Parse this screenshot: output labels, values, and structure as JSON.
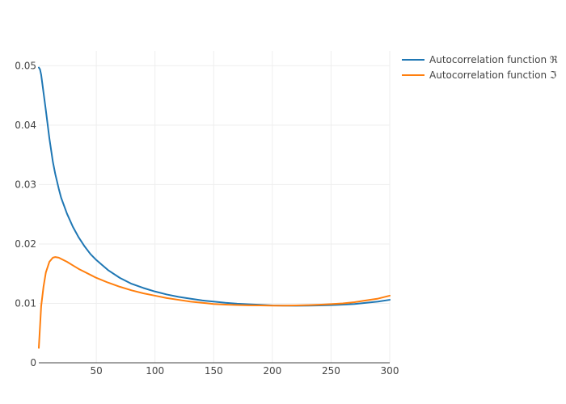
{
  "chart_data": {
    "type": "line",
    "title": "",
    "xlabel": "",
    "ylabel": "",
    "xlim": [
      1,
      300
    ],
    "ylim": [
      0,
      0.05
    ],
    "x_ticks": [
      50,
      100,
      150,
      200,
      250,
      300
    ],
    "x_tick_labels": [
      "50",
      "100",
      "150",
      "200",
      "250",
      "300"
    ],
    "y_ticks": [
      0,
      0.01,
      0.02,
      0.03,
      0.04,
      0.05
    ],
    "y_tick_labels": [
      "0",
      "0.01",
      "0.02",
      "0.03",
      "0.04",
      "0.05"
    ],
    "grid": true,
    "legend_position": "top-right, outside plot",
    "series": [
      {
        "name": "Autocorrelation function ℜ",
        "color": "#1f77b4",
        "x": [
          1,
          2,
          3,
          5,
          7,
          10,
          13,
          15,
          18,
          20,
          25,
          30,
          35,
          40,
          45,
          50,
          60,
          70,
          80,
          90,
          100,
          110,
          120,
          130,
          140,
          150,
          160,
          170,
          180,
          190,
          200,
          210,
          220,
          230,
          240,
          250,
          260,
          270,
          280,
          290,
          300
        ],
        "y": [
          0.0497,
          0.0494,
          0.0485,
          0.0455,
          0.0425,
          0.0378,
          0.0338,
          0.0318,
          0.0293,
          0.0278,
          0.0251,
          0.0229,
          0.0211,
          0.0196,
          0.0183,
          0.0173,
          0.0156,
          0.0143,
          0.0133,
          0.0126,
          0.012,
          0.0115,
          0.0111,
          0.0108,
          0.0105,
          0.0103,
          0.0101,
          0.00995,
          0.00985,
          0.00975,
          0.00965,
          0.00962,
          0.0096,
          0.00962,
          0.00965,
          0.0097,
          0.0098,
          0.0099,
          0.0101,
          0.0103,
          0.0106
        ]
      },
      {
        "name": "Autocorrelation function ℑ",
        "color": "#ff7f0e",
        "x": [
          1,
          2,
          3,
          5,
          7,
          10,
          13,
          15,
          18,
          20,
          25,
          30,
          35,
          40,
          45,
          50,
          60,
          70,
          80,
          90,
          100,
          110,
          120,
          130,
          140,
          150,
          160,
          170,
          180,
          190,
          200,
          210,
          220,
          230,
          240,
          250,
          260,
          270,
          280,
          290,
          300
        ],
        "y": [
          0.0025,
          0.006,
          0.0095,
          0.0128,
          0.0152,
          0.017,
          0.0177,
          0.0178,
          0.0177,
          0.0175,
          0.017,
          0.0164,
          0.0158,
          0.0153,
          0.0148,
          0.0143,
          0.0135,
          0.0128,
          0.0122,
          0.0117,
          0.0113,
          0.0109,
          0.0106,
          0.0103,
          0.0101,
          0.0099,
          0.0098,
          0.00973,
          0.00968,
          0.00965,
          0.00963,
          0.00963,
          0.00965,
          0.0097,
          0.00978,
          0.00988,
          0.01,
          0.0102,
          0.0105,
          0.0108,
          0.0113
        ]
      }
    ]
  }
}
